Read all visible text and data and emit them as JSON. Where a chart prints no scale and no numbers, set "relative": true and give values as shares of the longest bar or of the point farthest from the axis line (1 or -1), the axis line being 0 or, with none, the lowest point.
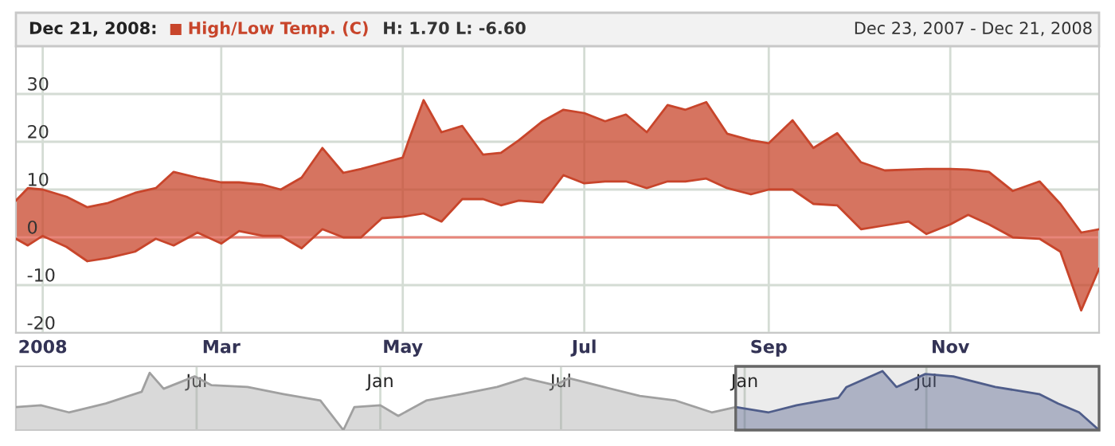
{
  "chart_data": [
    {
      "type": "area",
      "legend": "top",
      "annotations": [
        "Dec 21, 2008:",
        "H: 1.70 L: -6.60",
        "Dec 23, 2007 - Dec 21, 2008"
      ],
      "x": [
        "2007-12-23",
        "2007-12-27",
        "2008-01-01",
        "2008-01-09",
        "2008-01-16",
        "2008-01-23",
        "2008-02-01",
        "2008-02-08",
        "2008-02-14",
        "2008-02-22",
        "2008-03-01",
        "2008-03-07",
        "2008-03-15",
        "2008-03-21",
        "2008-03-28",
        "2008-04-04",
        "2008-04-11",
        "2008-04-17",
        "2008-04-24",
        "2008-05-01",
        "2008-05-03",
        "2008-05-08",
        "2008-05-14",
        "2008-05-21",
        "2008-05-28",
        "2008-06-03",
        "2008-06-09",
        "2008-06-17",
        "2008-06-24",
        "2008-07-01",
        "2008-07-08",
        "2008-07-15",
        "2008-07-22",
        "2008-07-29",
        "2008-08-04",
        "2008-08-11",
        "2008-08-18",
        "2008-08-26",
        "2008-09-01",
        "2008-09-09",
        "2008-09-16",
        "2008-09-24",
        "2008-10-02",
        "2008-10-10",
        "2008-10-18",
        "2008-10-24",
        "2008-11-01",
        "2008-11-07",
        "2008-11-14",
        "2008-11-22",
        "2008-12-01",
        "2008-12-08",
        "2008-12-15",
        "2008-12-21"
      ],
      "series": [
        {
          "name": "High/Low Temp. (C)",
          "color": "#c8452b",
          "type": "line",
          "values": [
            7.7,
            10.3,
            10,
            8.5,
            6.3,
            7.2,
            9.3,
            10.3,
            13.7,
            12.5,
            11.5,
            11.5,
            11,
            10,
            12.5,
            18.7,
            13.5,
            14.3,
            15.5,
            16.7,
            20.3,
            28.7,
            22,
            23.3,
            17.3,
            17.7,
            20.3,
            24.3,
            26.7,
            26,
            24.3,
            25.7,
            22,
            27.7,
            26.7,
            28.3,
            21.7,
            20.3,
            19.7,
            24.5,
            18.7,
            21.8,
            15.7,
            14,
            14.2,
            14.3,
            14.3,
            14.2,
            13.7,
            9.7,
            11.7,
            7,
            1,
            1.7
          ],
          "upper": [
            7.7,
            10.3,
            10,
            8.5,
            6.3,
            7.2,
            9.3,
            10.3,
            13.7,
            12.5,
            11.5,
            11.5,
            11,
            10,
            12.5,
            18.7,
            13.5,
            14.3,
            15.5,
            16.7,
            20.3,
            28.7,
            22,
            23.3,
            17.3,
            17.7,
            20.3,
            24.3,
            26.7,
            26,
            24.3,
            25.7,
            22,
            27.7,
            26.7,
            28.3,
            21.7,
            20.3,
            19.7,
            24.5,
            18.7,
            21.8,
            15.7,
            14,
            14.2,
            14.3,
            14.3,
            14.2,
            13.7,
            9.7,
            11.7,
            7,
            1,
            1.7
          ],
          "lower": [
            -0.3,
            -1.7,
            0.3,
            -2,
            -5,
            -4.3,
            -3,
            -0.3,
            -1.7,
            1,
            -1.3,
            1.3,
            0.3,
            0.3,
            -2.3,
            1.7,
            0,
            0,
            4,
            4.3,
            4.5,
            5,
            3.3,
            8,
            8,
            6.7,
            7.7,
            7.3,
            13,
            11.3,
            11.7,
            11.7,
            10.3,
            11.7,
            11.7,
            12.3,
            10.3,
            9,
            10,
            10,
            7,
            6.7,
            1.7,
            2.5,
            3.3,
            0.7,
            2.7,
            4.7,
            2.7,
            0,
            -0.3,
            -3,
            -15.3,
            -6.6
          ]
        },
        {
          "color": "#c8452b",
          "type": "line",
          "values": [
            -0.3,
            -1.7,
            0.3,
            -2,
            -5,
            -4.3,
            -3,
            -0.3,
            -1.7,
            1,
            -1.3,
            1.3,
            0.3,
            0.3,
            -2.3,
            1.7,
            0,
            0,
            4,
            4.3,
            4.5,
            5,
            3.3,
            8,
            8,
            6.7,
            7.7,
            7.3,
            13,
            11.3,
            11.7,
            11.7,
            10.3,
            11.7,
            11.7,
            12.3,
            10.3,
            9,
            10,
            10,
            7,
            6.7,
            1.7,
            2.5,
            3.3,
            0.7,
            2.7,
            4.7,
            2.7,
            0,
            -0.3,
            -3,
            -15.3,
            -6.6
          ]
        }
      ],
      "xlim": [
        "2007-12-23",
        "2008-12-21"
      ],
      "xticks": [
        {
          "value": "2008-01-01",
          "label": "2008"
        },
        {
          "value": "2008-03-01",
          "label": "Mar"
        },
        {
          "value": "2008-05-01",
          "label": "May"
        },
        {
          "value": "2008-07-01",
          "label": "Jul"
        },
        {
          "value": "2008-09-01",
          "label": "Sep"
        },
        {
          "value": "2008-11-01",
          "label": "Nov"
        }
      ],
      "ylim": [
        -20,
        40
      ],
      "yticks": [
        -20,
        -10,
        0,
        10,
        20,
        30
      ],
      "grid": true,
      "ref_lines": [
        {
          "axis": "y",
          "value": 0,
          "color": "#e8857a"
        }
      ]
    },
    {
      "type": "area",
      "relative": true,
      "grid": "x",
      "tick_labels": "x",
      "xlim": [
        "2006-01-01",
        "2008-12-21"
      ],
      "xticks": [
        {
          "value": "2006-07-01",
          "label": "Jul"
        },
        {
          "value": "2007-01-01",
          "label": "Jan"
        },
        {
          "value": "2007-07-01",
          "label": "Jul"
        },
        {
          "value": "2008-01-01",
          "label": "Jan"
        },
        {
          "value": "2008-07-01",
          "label": "Jul"
        }
      ],
      "bands": [
        {
          "axis": "x",
          "from": "2007-12-23",
          "to": "2008-12-21",
          "color": "#666666"
        }
      ],
      "series": [
        {
          "color": "#a0a0a0",
          "x": [
            "2006-01-01",
            "2006-01-26",
            "2006-02-23",
            "2006-04-01",
            "2006-05-07",
            "2006-05-15",
            "2006-05-29",
            "2006-06-29",
            "2006-07-16",
            "2006-08-21",
            "2006-09-26",
            "2006-11-02",
            "2006-11-25",
            "2006-12-06",
            "2007-01-01",
            "2007-01-19",
            "2007-02-16",
            "2007-03-23",
            "2007-04-28",
            "2007-05-26",
            "2007-06-25",
            "2007-07-09",
            "2007-08-13",
            "2007-09-18",
            "2007-10-24",
            "2007-11-29",
            "2007-12-23"
          ],
          "values": [
            0.39,
            0.42,
            0.3,
            0.45,
            0.65,
            0.97,
            0.7,
            0.91,
            0.76,
            0.73,
            0.61,
            0.5,
            0,
            0.39,
            0.42,
            0.24,
            0.5,
            0.61,
            0.73,
            0.88,
            0.76,
            0.88,
            0.73,
            0.58,
            0.5,
            0.3,
            0.39
          ]
        },
        {
          "color": "#4f5d8a",
          "x": [
            "2007-12-23",
            "2008-01-25",
            "2008-02-22",
            "2008-04-04",
            "2008-04-12",
            "2008-05-18",
            "2008-06-01",
            "2008-06-30",
            "2008-07-28",
            "2008-09-08",
            "2008-10-22",
            "2008-11-10",
            "2008-12-01",
            "2008-12-21"
          ],
          "values": [
            0.39,
            0.3,
            0.42,
            0.55,
            0.73,
            1.0,
            0.73,
            0.95,
            0.91,
            0.73,
            0.61,
            0.45,
            0.3,
            0.0
          ]
        }
      ]
    }
  ]
}
